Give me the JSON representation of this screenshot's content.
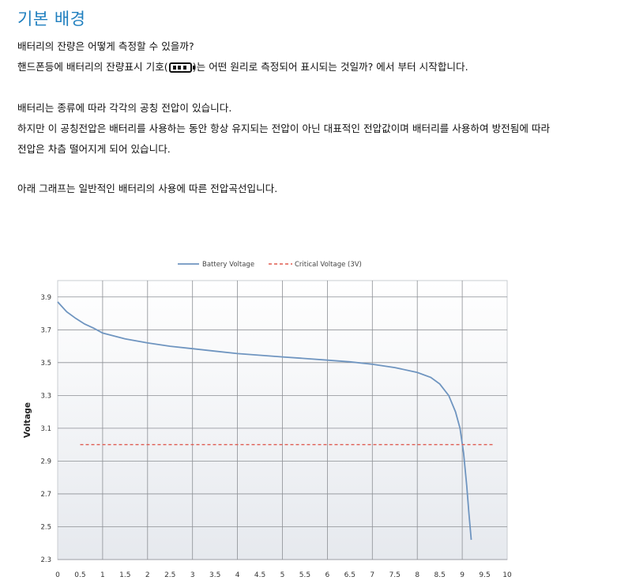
{
  "heading": "기본 배경",
  "paragraphs": {
    "q1": "배터리의 잔량은 어떻게 측정할 수 있을까?",
    "q2_before": "핸드폰등에 배터리의 잔량표시 기호(",
    "q2_after": ")는 어떤 원리로 측정되어 표시되는 것일까? 에서 부터 시작합니다.",
    "p1": "배터리는 종류에 따라 각각의 공칭 전압이 있습니다.",
    "p2": "하지만 이 공칭전압은 배터리를 사용하는 동안 항상 유지되는 전압이 아닌 대표적인 전압값이며 배터리를 사용하여 방전됨에 따라",
    "p3": "전압은 차츰 떨어지게 되어 있습니다.",
    "p4": "아래 그래프는 일반적인 배터리의 사용에 따른 전압곡선입니다."
  },
  "icons": {
    "battery": "battery-full-icon"
  },
  "chart_data": {
    "type": "line",
    "title": "",
    "xlabel": "",
    "ylabel": "Voltage",
    "xlim": [
      0,
      10
    ],
    "ylim": [
      2.3,
      4.0
    ],
    "x_ticks": [
      "0",
      "0.5",
      "1",
      "1.5",
      "2",
      "2.5",
      "3",
      "3.5",
      "4",
      "4.5",
      "5",
      "5.5",
      "6",
      "6.5",
      "7",
      "7.5",
      "8",
      "8.5",
      "9",
      "9.5",
      "10"
    ],
    "y_ticks": [
      "2.3",
      "2.5",
      "2.7",
      "2.9",
      "3.1",
      "3.3",
      "3.5",
      "3.7",
      "3.9"
    ],
    "grid": true,
    "legend_position": "top-center",
    "series": [
      {
        "name": "Battery Voltage",
        "color": "#6f95c0",
        "style": "solid",
        "points": [
          [
            0,
            3.87
          ],
          [
            0.2,
            3.81
          ],
          [
            0.4,
            3.77
          ],
          [
            0.6,
            3.735
          ],
          [
            0.8,
            3.71
          ],
          [
            1,
            3.68
          ],
          [
            1.5,
            3.645
          ],
          [
            2,
            3.62
          ],
          [
            2.5,
            3.6
          ],
          [
            3,
            3.585
          ],
          [
            3.5,
            3.57
          ],
          [
            4,
            3.555
          ],
          [
            4.5,
            3.545
          ],
          [
            5,
            3.535
          ],
          [
            5.5,
            3.525
          ],
          [
            6,
            3.515
          ],
          [
            6.5,
            3.505
          ],
          [
            7,
            3.49
          ],
          [
            7.5,
            3.47
          ],
          [
            8,
            3.44
          ],
          [
            8.3,
            3.41
          ],
          [
            8.5,
            3.37
          ],
          [
            8.7,
            3.3
          ],
          [
            8.85,
            3.2
          ],
          [
            8.95,
            3.1
          ],
          [
            9.03,
            2.95
          ],
          [
            9.1,
            2.75
          ],
          [
            9.15,
            2.58
          ],
          [
            9.2,
            2.42
          ]
        ]
      },
      {
        "name": "Critical Voltage (3V)",
        "color": "#e05a4f",
        "style": "dashed",
        "points": [
          [
            0.5,
            3.0
          ],
          [
            9.7,
            3.0
          ]
        ]
      }
    ]
  }
}
